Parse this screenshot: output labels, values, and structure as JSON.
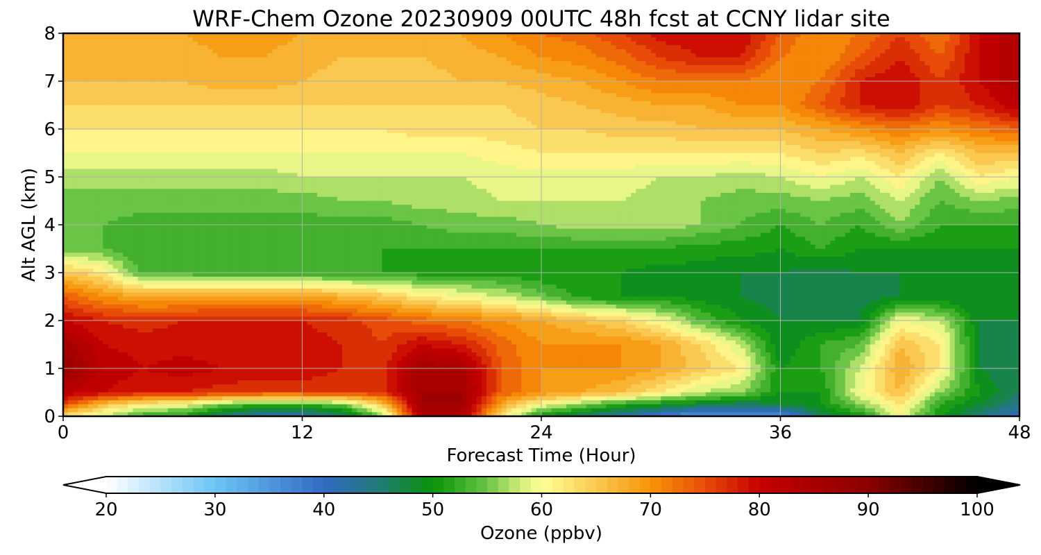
{
  "chart_data": {
    "type": "heatmap",
    "title": "WRF-Chem Ozone  20230909 00UTC 48h fcst at CCNY lidar site",
    "xlabel": "Forecast Time (Hour)",
    "ylabel": "Alt AGL (km)",
    "xlim": [
      0,
      48
    ],
    "ylim": [
      0,
      8
    ],
    "x_ticks": [
      0,
      12,
      24,
      36,
      48
    ],
    "y_ticks": [
      0,
      1,
      2,
      3,
      4,
      5,
      6,
      7,
      8
    ],
    "grid": true,
    "x": [
      0,
      2,
      4,
      6,
      8,
      10,
      12,
      14,
      16,
      18,
      20,
      22,
      24,
      26,
      28,
      30,
      32,
      34,
      36,
      38,
      40,
      42,
      44,
      46,
      48
    ],
    "y": [
      0,
      0.25,
      0.5,
      1,
      1.5,
      2,
      2.5,
      3,
      3.5,
      4,
      4.5,
      5,
      5.5,
      6,
      6.5,
      7,
      7.5,
      8
    ],
    "values": [
      [
        62,
        58,
        52,
        51,
        45,
        42,
        42,
        45,
        55,
        84,
        84,
        62,
        50,
        46,
        42,
        38,
        34,
        34,
        36,
        46,
        50,
        60,
        50,
        45,
        40
      ],
      [
        76,
        66,
        62,
        60,
        55,
        52,
        52,
        55,
        65,
        86,
        86,
        68,
        60,
        56,
        52,
        50,
        48,
        46,
        48,
        50,
        56,
        62,
        52,
        48,
        44
      ],
      [
        82,
        80,
        78,
        78,
        77,
        76,
        76,
        76,
        77,
        86,
        86,
        74,
        70,
        68,
        66,
        62,
        58,
        56,
        50,
        50,
        60,
        66,
        56,
        50,
        46
      ],
      [
        88,
        82,
        80,
        81,
        80,
        80,
        80,
        78,
        77,
        86,
        85,
        74,
        70,
        70,
        70,
        68,
        65,
        62,
        50,
        52,
        58,
        68,
        62,
        48,
        46
      ],
      [
        86,
        80,
        79,
        79,
        79,
        79,
        79,
        78,
        76,
        80,
        78,
        73,
        70,
        70,
        70,
        68,
        64,
        58,
        48,
        52,
        54,
        66,
        62,
        48,
        46
      ],
      [
        80,
        78,
        77,
        78,
        78,
        78,
        78,
        77,
        75,
        73,
        72,
        70,
        68,
        66,
        64,
        60,
        54,
        50,
        48,
        48,
        48,
        60,
        58,
        48,
        48
      ],
      [
        74,
        70,
        68,
        68,
        69,
        69,
        69,
        67,
        65,
        62,
        60,
        58,
        55,
        51,
        50,
        50,
        49,
        48,
        47,
        46,
        47,
        48,
        48,
        48,
        48
      ],
      [
        65,
        62,
        53,
        53,
        52,
        52,
        52,
        52,
        52,
        51,
        51,
        51,
        50,
        50,
        50,
        49,
        49,
        48,
        48,
        47,
        48,
        48,
        48,
        48,
        48
      ],
      [
        55,
        54,
        52,
        52,
        52,
        52,
        52,
        52,
        52,
        52,
        52,
        52,
        52,
        52,
        52,
        52,
        51,
        51,
        50,
        52,
        50,
        50,
        50,
        50,
        50
      ],
      [
        55,
        54,
        53,
        53,
        53,
        53,
        53,
        53,
        53,
        54,
        55,
        55,
        56,
        57,
        57,
        57,
        56,
        54,
        52,
        54,
        52,
        56,
        52,
        52,
        52
      ],
      [
        55,
        55,
        55,
        55,
        55,
        55,
        55,
        56,
        56,
        57,
        57,
        58,
        58,
        58,
        58,
        57,
        56,
        55,
        55,
        56,
        55,
        58,
        54,
        56,
        55
      ],
      [
        57,
        57,
        57,
        57,
        57,
        57,
        58,
        58,
        58,
        58,
        58,
        59,
        59,
        59,
        59,
        58,
        58,
        57,
        58,
        60,
        58,
        62,
        56,
        62,
        60
      ],
      [
        60,
        60,
        60,
        60,
        60,
        60,
        60,
        60,
        60,
        60,
        60,
        61,
        62,
        62,
        62,
        62,
        62,
        62,
        62,
        64,
        63,
        66,
        62,
        66,
        66
      ],
      [
        62,
        62,
        62,
        62,
        62,
        62,
        62,
        62,
        62,
        63,
        63,
        63,
        64,
        64,
        65,
        65,
        66,
        66,
        66,
        68,
        70,
        72,
        70,
        72,
        74
      ],
      [
        64,
        64,
        64,
        64,
        64,
        64,
        64,
        64,
        64,
        64,
        64,
        64,
        65,
        66,
        67,
        68,
        68,
        70,
        70,
        74,
        78,
        80,
        76,
        78,
        82
      ],
      [
        66,
        66,
        66,
        66,
        67,
        67,
        66,
        65,
        65,
        65,
        66,
        66,
        67,
        68,
        70,
        72,
        72,
        72,
        70,
        72,
        78,
        80,
        76,
        80,
        84
      ],
      [
        67,
        67,
        67,
        67,
        68,
        68,
        67,
        66,
        66,
        66,
        67,
        68,
        70,
        71,
        73,
        76,
        78,
        78,
        72,
        70,
        74,
        78,
        74,
        80,
        84
      ],
      [
        68,
        68,
        68,
        68,
        69,
        69,
        68,
        67,
        67,
        67,
        68,
        70,
        72,
        73,
        76,
        79,
        80,
        80,
        74,
        70,
        72,
        76,
        72,
        80,
        84
      ]
    ],
    "colorbar": {
      "label": "Ozone  (ppbv)",
      "min": 20,
      "max": 100,
      "ticks": [
        20,
        30,
        40,
        50,
        60,
        70,
        80,
        90,
        100
      ],
      "extend": "both"
    }
  }
}
